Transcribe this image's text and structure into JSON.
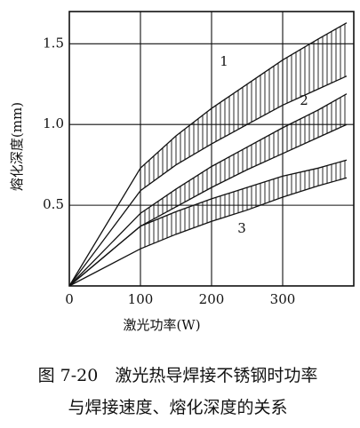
{
  "chart_data": {
    "type": "band",
    "x_label": "激光功率(W)",
    "y_label": "熔化深度(mm)",
    "caption": [
      "图 7-20　激光热导焊接不锈钢时功率",
      "与焊接速度、熔化深度的关系"
    ],
    "x": [
      0,
      100,
      150,
      200,
      250,
      300,
      350,
      390
    ],
    "series": [
      {
        "name": "1",
        "color": "#111111",
        "values": [
          0,
          0.73,
          0.93,
          1.1,
          1.25,
          1.4,
          1.53,
          1.63
        ],
        "lower": [
          0,
          0.59,
          0.75,
          0.88,
          1.0,
          1.12,
          1.22,
          1.3
        ]
      },
      {
        "name": "2",
        "color": "#111111",
        "values": [
          0,
          0.45,
          0.6,
          0.74,
          0.86,
          0.98,
          1.09,
          1.19
        ],
        "lower": [
          0,
          0.37,
          0.49,
          0.61,
          0.72,
          0.82,
          0.92,
          1.0
        ]
      },
      {
        "name": "3",
        "color": "#111111",
        "values": [
          0,
          0.37,
          0.46,
          0.54,
          0.61,
          0.68,
          0.73,
          0.78
        ],
        "lower": [
          0,
          0.23,
          0.32,
          0.4,
          0.47,
          0.55,
          0.62,
          0.67
        ]
      }
    ],
    "hatch_from": 100,
    "xlim": [
      0,
      400
    ],
    "ylim": [
      0,
      1.7
    ],
    "xticks": [
      0,
      100,
      200,
      300
    ],
    "yticks": [
      0.5,
      {
        "value": 1,
        "label": "1.0"
      },
      1.5
    ],
    "grid": true
  }
}
